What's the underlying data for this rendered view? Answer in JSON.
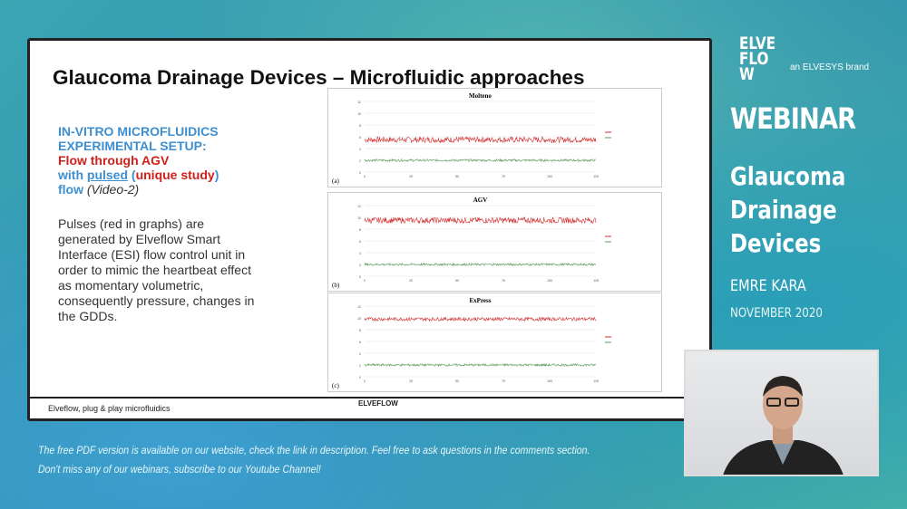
{
  "slide": {
    "title": "Glaucoma Drainage Devices – Microfluidic approaches",
    "setup": {
      "l1": "IN-VITRO MICROFLUIDICS",
      "l2": "EXPERIMENTAL SETUP:",
      "l3": "Flow through AGV",
      "l4a": "with ",
      "l4b": "pulsed",
      "l4c": " (",
      "l4d": "unique study",
      "l4e": ")",
      "l5a": "flow ",
      "l5b": "(Video-2)"
    },
    "description": "Pulses (red in graphs) are generated by Elveflow Smart Interface (ESI) flow control unit in order to mimic the heartbeat effect as momentary volumetric, consequently pressure, changes in the GDDs.",
    "footer": {
      "tagline": "Elveflow, plug & play microfluidics",
      "logo": "ELVEFLOW"
    }
  },
  "chart_data": [
    {
      "type": "line",
      "title": "Molteno",
      "panel_label": "(a)",
      "ylim": [
        0,
        12
      ],
      "xlim": [
        0,
        125
      ],
      "yticks": [
        0,
        2,
        4,
        6,
        8,
        10,
        12
      ],
      "xticks": [
        0,
        25,
        50,
        75,
        100,
        125
      ],
      "series": [
        {
          "color": "#d03030",
          "mean": 5.5,
          "noise": 0.5
        },
        {
          "color": "#5a9a5a",
          "mean": 2,
          "noise": 0.2
        }
      ]
    },
    {
      "type": "line",
      "title": "AGV",
      "panel_label": "(b)",
      "ylim": [
        0,
        12
      ],
      "xlim": [
        0,
        125
      ],
      "yticks": [
        0,
        2,
        4,
        6,
        8,
        10,
        12
      ],
      "xticks": [
        0,
        25,
        50,
        75,
        100,
        125
      ],
      "series": [
        {
          "color": "#d03030",
          "mean": 9.5,
          "noise": 0.5
        },
        {
          "color": "#5a9a5a",
          "mean": 2,
          "noise": 0.2
        }
      ]
    },
    {
      "type": "line",
      "title": "ExPress",
      "panel_label": "(c)",
      "ylim": [
        0,
        12
      ],
      "xlim": [
        0,
        125
      ],
      "yticks": [
        0,
        2,
        4,
        6,
        8,
        10,
        12
      ],
      "xticks": [
        0,
        25,
        50,
        75,
        100,
        125
      ],
      "series": [
        {
          "color": "#d03030",
          "mean": 9.8,
          "noise": 0.3
        },
        {
          "color": "#5a9a5a",
          "mean": 2,
          "noise": 0.2
        }
      ]
    }
  ],
  "brand": {
    "logo": "ELVEFLOW",
    "tagline": "an ELVESYS brand"
  },
  "webinar": {
    "label": "WEBINAR",
    "topic1": "Glaucoma",
    "topic2": "Drainage",
    "topic3": "Devices",
    "presenter": "EMRE KARA",
    "date": "NOVEMBER 2020"
  },
  "notes": {
    "line1": "The free PDF version is available on our website, check the link in description. Feel free to ask questions in the comments section.",
    "line2": "Don't miss any of our webinars, subscribe to our Youtube Channel!"
  },
  "colors": {
    "accent_blue": "#3d8fd0",
    "accent_red": "#d0201a"
  }
}
